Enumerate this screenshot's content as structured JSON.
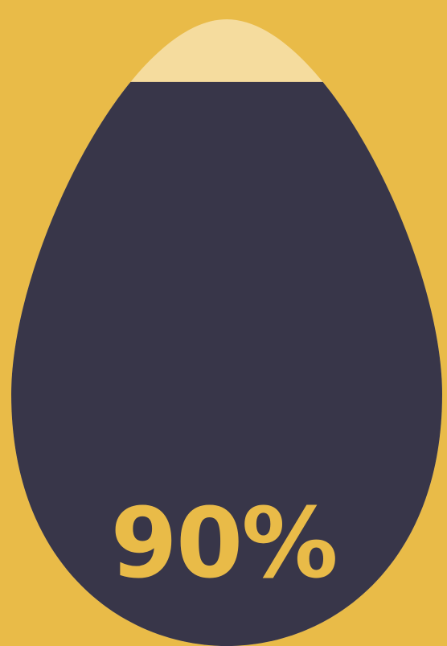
{
  "progress": {
    "label": "90%",
    "fraction": 0.9
  },
  "colors": {
    "background": "#E9BB48",
    "egg_empty": "#F5DC9E",
    "egg_fill": "#383649",
    "label": "#E9BB48"
  },
  "icon": "egg-icon"
}
